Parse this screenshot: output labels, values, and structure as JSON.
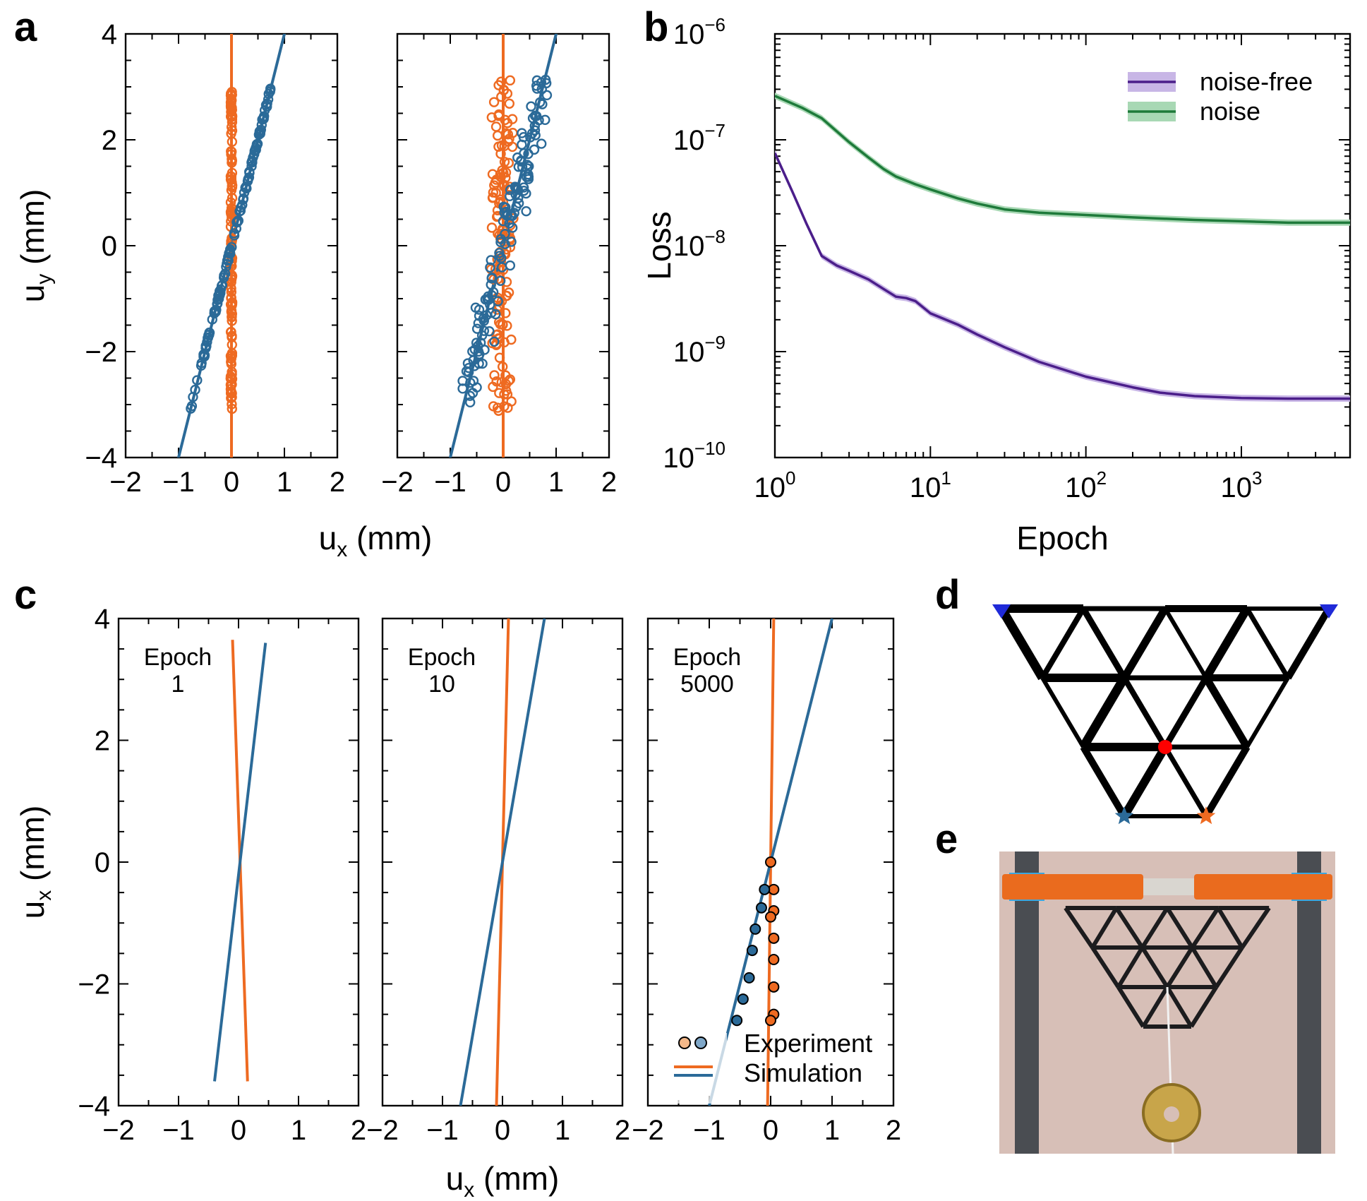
{
  "colors": {
    "orange": "#ee6a21",
    "blue": "#2b6a98",
    "purple": "#4b1e8a",
    "green": "#1e7a3a",
    "purple_band": "#c8b6e6",
    "green_band": "#a8d8b4",
    "orange_light": "#f4b889",
    "blue_light": "#7fa7c8",
    "photo_bg": "#d7bfb7",
    "red_node": "#ff0000",
    "pin_blue": "#1f2ad8"
  },
  "panel_letters": {
    "a": "a",
    "b": "b",
    "c": "c",
    "d": "d",
    "e": "e"
  },
  "chart_data": [
    {
      "id": "a_left",
      "type": "scatter",
      "xlabel": "u",
      "xlabel_sub": "x",
      "xlabel_unit": " (mm)",
      "ylabel": "u",
      "ylabel_sub": "y",
      "ylabel_unit": " (mm)",
      "xlim": [
        -2,
        2
      ],
      "ylim": [
        -4,
        4
      ],
      "xticks": [
        -2,
        -1,
        0,
        1,
        2
      ],
      "xtick_labels": [
        "−2",
        "−1",
        "0",
        "1",
        "2"
      ],
      "yticks": [
        -4,
        -2,
        0,
        2,
        4
      ],
      "ytick_labels": [
        "−4",
        "−2",
        "0",
        "2",
        "4"
      ],
      "noise": 0.0,
      "series": [
        {
          "name": "orange fit",
          "kind": "line",
          "slope_dx_per_dy": 0.0,
          "color": "orange"
        },
        {
          "name": "blue fit",
          "kind": "line",
          "slope_dx_per_dy": 0.25,
          "color": "blue"
        },
        {
          "name": "orange points",
          "kind": "scatter",
          "x_per_y": 0.0,
          "y_range": [
            -3.1,
            3.0
          ],
          "count": 120,
          "color": "orange"
        },
        {
          "name": "blue points",
          "kind": "scatter",
          "x_per_y": 0.25,
          "y_range": [
            -3.1,
            3.05
          ],
          "count": 120,
          "color": "blue"
        }
      ]
    },
    {
      "id": "a_right",
      "type": "scatter",
      "xlim": [
        -2,
        2
      ],
      "ylim": [
        -4,
        4
      ],
      "xticks": [
        -2,
        -1,
        0,
        1,
        2
      ],
      "xtick_labels": [
        "−2",
        "−1",
        "0",
        "1",
        "2"
      ],
      "noise": 0.13,
      "series": [
        {
          "name": "orange fit",
          "kind": "line",
          "slope_dx_per_dy": 0.0,
          "color": "orange"
        },
        {
          "name": "blue fit",
          "kind": "line",
          "slope_dx_per_dy": 0.25,
          "color": "blue"
        },
        {
          "name": "orange points",
          "kind": "scatter",
          "x_per_y": 0.0,
          "y_range": [
            -3.2,
            3.2
          ],
          "count": 130,
          "color": "orange"
        },
        {
          "name": "blue points",
          "kind": "scatter",
          "x_per_y": 0.25,
          "y_range": [
            -3.0,
            3.2
          ],
          "count": 130,
          "color": "blue"
        }
      ]
    },
    {
      "id": "b",
      "type": "line",
      "xlabel": "Epoch",
      "ylabel": "Loss",
      "xscale": "log",
      "yscale": "log",
      "xlim": [
        1,
        5000
      ],
      "ylim": [
        1e-10,
        1e-06
      ],
      "xticks": [
        1,
        10,
        100,
        1000
      ],
      "xtick_base": [
        "10",
        "10",
        "10",
        "10"
      ],
      "xtick_exp": [
        "0",
        "1",
        "2",
        "3"
      ],
      "yticks": [
        1e-10,
        1e-09,
        1e-08,
        1e-07,
        1e-06
      ],
      "ytick_base": [
        "10",
        "10",
        "10",
        "10",
        "10"
      ],
      "ytick_exp": [
        "−10",
        "−9",
        "−8",
        "−7",
        "−6"
      ],
      "legend_position": "top-right",
      "legend": [
        "noise-free",
        "noise"
      ],
      "series": [
        {
          "name": "noise-free",
          "color": "purple",
          "band": "purple_band",
          "x": [
            1,
            1.3,
            1.6,
            2,
            2.5,
            3,
            4,
            5,
            6,
            7,
            8,
            10,
            15,
            20,
            30,
            50,
            100,
            200,
            300,
            500,
            1000,
            2000,
            5000
          ],
          "y": [
            7.5e-08,
            3.2e-08,
            1.6e-08,
            8e-09,
            6.5e-09,
            5.8e-09,
            4.8e-09,
            3.9e-09,
            3.3e-09,
            3.2e-09,
            3e-09,
            2.3e-09,
            1.8e-09,
            1.45e-09,
            1.1e-09,
            8e-10,
            5.8e-10,
            4.6e-10,
            4.1e-10,
            3.8e-10,
            3.65e-10,
            3.6e-10,
            3.6e-10
          ]
        },
        {
          "name": "noise",
          "color": "green",
          "band": "green_band",
          "x": [
            1,
            1.5,
            2,
            2.5,
            3,
            4,
            5,
            6,
            8,
            10,
            15,
            20,
            30,
            50,
            100,
            200,
            500,
            1000,
            2000,
            5000
          ],
          "y": [
            2.6e-07,
            2e-07,
            1.6e-07,
            1.2e-07,
            9.5e-08,
            6.8e-08,
            5.3e-08,
            4.5e-08,
            3.8e-08,
            3.4e-08,
            2.8e-08,
            2.5e-08,
            2.2e-08,
            2.05e-08,
            1.95e-08,
            1.85e-08,
            1.75e-08,
            1.7e-08,
            1.65e-08,
            1.65e-08
          ]
        }
      ]
    },
    {
      "id": "c1",
      "type": "line",
      "annotation": [
        "Epoch",
        "1"
      ],
      "xlim": [
        -2,
        2
      ],
      "ylim": [
        -4,
        4
      ],
      "xticks": [
        -2,
        -1,
        0,
        1,
        2
      ],
      "xtick_labels": [
        "−2",
        "−1",
        "0",
        "1",
        "2"
      ],
      "yticks": [
        -4,
        -2,
        0,
        2,
        4
      ],
      "ytick_labels": [
        "−4",
        "−2",
        "0",
        "2",
        "4"
      ],
      "ylabel": "u",
      "ylabel_sub": "x",
      "ylabel_unit": " (mm)",
      "series": [
        {
          "name": "orange",
          "color": "orange",
          "x": [
            -0.1,
            0.15
          ],
          "y": [
            3.65,
            -3.6
          ]
        },
        {
          "name": "blue",
          "color": "blue",
          "x": [
            0.45,
            -0.4
          ],
          "y": [
            3.6,
            -3.6
          ]
        }
      ]
    },
    {
      "id": "c2",
      "type": "line",
      "annotation": [
        "Epoch",
        "10"
      ],
      "xlim": [
        -2,
        2
      ],
      "ylim": [
        -4,
        4
      ],
      "xticks": [
        -2,
        -1,
        0,
        1,
        2
      ],
      "xtick_labels": [
        "−2",
        "−1",
        "0",
        "1",
        "2"
      ],
      "xlabel": "u",
      "xlabel_sub": "x",
      "xlabel_unit": " (mm)",
      "series": [
        {
          "name": "orange",
          "color": "orange",
          "x": [
            0.1,
            -0.1
          ],
          "y": [
            4,
            -4
          ]
        },
        {
          "name": "blue",
          "color": "blue",
          "x": [
            0.7,
            -0.7
          ],
          "y": [
            4,
            -4
          ]
        }
      ]
    },
    {
      "id": "c3",
      "type": "scatter",
      "annotation": [
        "Epoch",
        "5000"
      ],
      "xlim": [
        -2,
        2
      ],
      "ylim": [
        -4,
        4
      ],
      "xticks": [
        -2,
        -1,
        0,
        1,
        2
      ],
      "xtick_labels": [
        "−2",
        "−1",
        "0",
        "1",
        "2"
      ],
      "legend_position": "bottom-right",
      "legend": [
        "Experiment",
        "Simulation"
      ],
      "series": [
        {
          "name": "orange sim",
          "color": "orange",
          "x": [
            0.05,
            -0.05
          ],
          "y": [
            4,
            -4
          ]
        },
        {
          "name": "blue sim",
          "color": "blue",
          "x": [
            1.0,
            -1.0
          ],
          "y": [
            4,
            -4
          ]
        },
        {
          "name": "orange experiment",
          "color": "orange",
          "points_x": [
            0.0,
            0.05,
            0.05,
            0.05,
            0.05,
            0.05,
            0.05,
            0.0,
            0.0
          ],
          "points_y": [
            0.0,
            -0.45,
            -0.8,
            -1.25,
            -1.6,
            -2.05,
            -2.5,
            -2.6,
            -0.9
          ]
        },
        {
          "name": "blue experiment",
          "color": "blue",
          "points_x": [
            -0.1,
            -0.15,
            -0.25,
            -0.3,
            -0.35,
            -0.45,
            -0.55
          ],
          "points_y": [
            -0.45,
            -0.75,
            -1.1,
            -1.45,
            -1.9,
            -2.25,
            -2.6
          ]
        }
      ]
    }
  ]
}
